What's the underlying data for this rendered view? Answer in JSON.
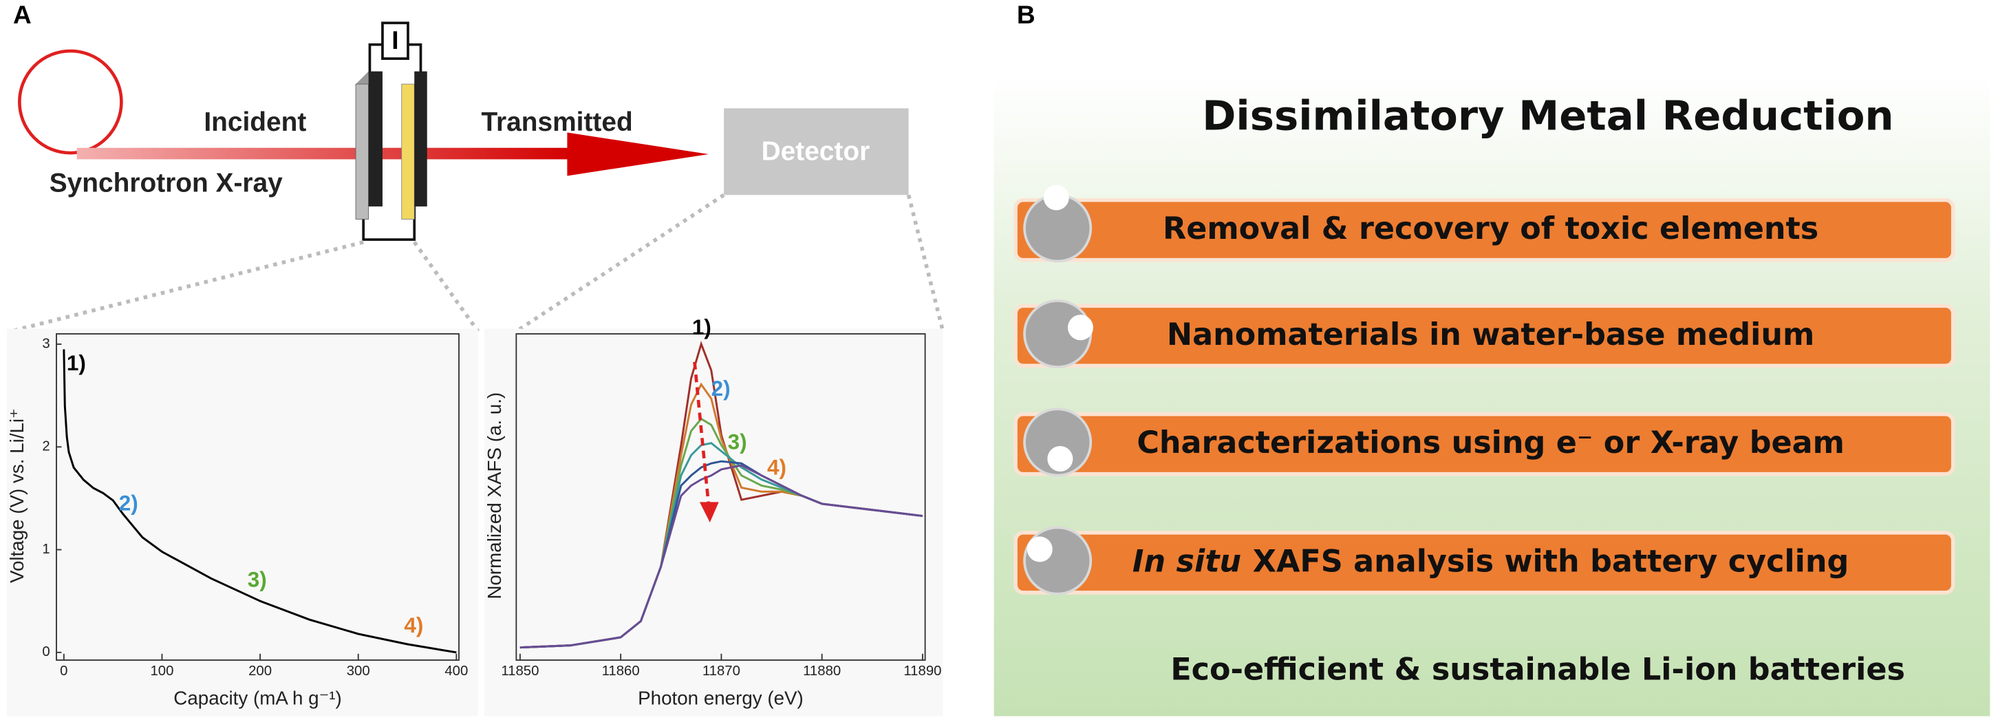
{
  "panel_labels": [
    "A",
    "B"
  ],
  "schematic": {
    "source": "Synchrotron X-ray",
    "incident": "Incident",
    "cell": "I",
    "transmitted": "Transmitted",
    "detector": "Detector"
  },
  "chart_data": [
    {
      "type": "line",
      "xlabel": "Capacity (mA h g⁻¹)",
      "ylabel": "Voltage (V) vs. Li/Li⁺",
      "x": [
        0,
        1,
        3,
        5,
        10,
        20,
        30,
        40,
        50,
        60,
        80,
        100,
        150,
        200,
        250,
        300,
        350,
        400
      ],
      "series": [
        {
          "color": "#000000",
          "values": [
            2.95,
            2.4,
            2.1,
            1.95,
            1.8,
            1.68,
            1.6,
            1.55,
            1.48,
            1.35,
            1.12,
            0.98,
            0.72,
            0.5,
            0.32,
            0.18,
            0.08,
            0.0
          ]
        }
      ],
      "xlim": [
        -5,
        400
      ],
      "ylim": [
        -0.05,
        3.1
      ],
      "xticks": [
        0,
        100,
        200,
        300,
        400
      ],
      "yticks": [
        0,
        1,
        2,
        3
      ],
      "annotations": [
        {
          "text": "1)",
          "color": "#000000"
        },
        {
          "text": "2)",
          "color": "#3a8fd6"
        },
        {
          "text": "3)",
          "color": "#5aa832"
        },
        {
          "text": "4)",
          "color": "#e07b28"
        }
      ]
    },
    {
      "type": "line",
      "xlabel": "Photon energy (eV)",
      "ylabel": "Normalized XAFS (a. u.)",
      "x": [
        11850,
        11855,
        11860,
        11862,
        11864,
        11866,
        11867,
        11868,
        11869,
        11870,
        11872,
        11874,
        11876,
        11878,
        11880,
        11885,
        11890
      ],
      "series": [
        {
          "color": "#a0302a",
          "values": [
            0.05,
            0.06,
            0.1,
            0.18,
            0.45,
            1.05,
            1.38,
            1.55,
            1.42,
            1.1,
            0.78,
            0.8,
            0.82,
            0.8,
            0.76,
            0.73,
            0.7
          ]
        },
        {
          "color": "#d07a30",
          "values": [
            0.05,
            0.06,
            0.1,
            0.18,
            0.45,
            1.0,
            1.25,
            1.35,
            1.28,
            1.08,
            0.84,
            0.82,
            0.82,
            0.8,
            0.76,
            0.73,
            0.7
          ]
        },
        {
          "color": "#6aa84f",
          "values": [
            0.05,
            0.06,
            0.1,
            0.18,
            0.45,
            0.95,
            1.12,
            1.18,
            1.15,
            1.05,
            0.9,
            0.85,
            0.83,
            0.8,
            0.76,
            0.73,
            0.7
          ]
        },
        {
          "color": "#3a9a9a",
          "values": [
            0.05,
            0.06,
            0.1,
            0.18,
            0.45,
            0.9,
            1.0,
            1.05,
            1.06,
            1.02,
            0.94,
            0.88,
            0.84,
            0.8,
            0.76,
            0.73,
            0.7
          ]
        },
        {
          "color": "#2f5597",
          "values": [
            0.05,
            0.06,
            0.1,
            0.18,
            0.45,
            0.85,
            0.9,
            0.94,
            0.96,
            0.97,
            0.96,
            0.9,
            0.85,
            0.8,
            0.76,
            0.73,
            0.7
          ]
        },
        {
          "color": "#6a4c93",
          "values": [
            0.05,
            0.06,
            0.1,
            0.18,
            0.45,
            0.8,
            0.85,
            0.88,
            0.9,
            0.93,
            0.95,
            0.9,
            0.85,
            0.8,
            0.76,
            0.73,
            0.7
          ]
        }
      ],
      "xlim": [
        11850,
        11890
      ],
      "ylim": [
        0,
        1.6
      ],
      "xticks": [
        11850,
        11860,
        11870,
        11880,
        11890
      ],
      "annotations": [
        {
          "text": "1)",
          "color": "#000000"
        },
        {
          "text": "2)",
          "color": "#3a8fd6"
        },
        {
          "text": "3)",
          "color": "#5aa832"
        },
        {
          "text": "4)",
          "color": "#e07b28"
        }
      ]
    }
  ],
  "panel_b": {
    "title": "Dissimilatory Metal Reduction",
    "items": [
      {
        "text": "Removal & recovery of toxic elements"
      },
      {
        "text": "Nanomaterials in water-base medium"
      },
      {
        "text": "Characterizations using e⁻ or X-ray beam"
      },
      {
        "italic": "In situ",
        "text": "XAFS analysis with battery cycling"
      }
    ],
    "footer": "Eco-efficient & sustainable Li-ion batteries"
  }
}
